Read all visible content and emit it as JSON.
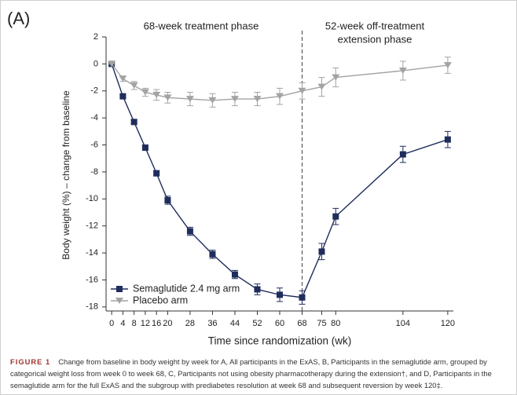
{
  "chart_data": {
    "type": "line",
    "panel_label": "(A)",
    "annotations": [
      "68-week treatment phase",
      "52-week off-treatment",
      "extension phase"
    ],
    "ylabel": "Body weight (%) – change from baseline",
    "xlabel": "Time since randomization (wk)",
    "x": [
      0,
      4,
      8,
      12,
      16,
      20,
      28,
      36,
      44,
      52,
      60,
      68,
      75,
      80,
      104,
      120
    ],
    "series": [
      {
        "name": "Semaglutide 2.4 mg arm",
        "color": "#1f2d5c",
        "marker": "square",
        "values": [
          0,
          -2.4,
          -4.3,
          -6.2,
          -8.1,
          -10.1,
          -12.4,
          -14.1,
          -15.6,
          -16.7,
          -17.1,
          -17.3,
          -13.9,
          -11.3,
          -6.7,
          -5.6
        ],
        "errors": [
          0,
          0.1,
          0.15,
          0.2,
          0.2,
          0.3,
          0.3,
          0.3,
          0.3,
          0.4,
          0.5,
          0.5,
          0.6,
          0.6,
          0.6,
          0.6
        ]
      },
      {
        "name": "Placebo arm",
        "color": "#a3a3a3",
        "marker": "triangle-down",
        "values": [
          0,
          -1.1,
          -1.6,
          -2.1,
          -2.3,
          -2.5,
          -2.6,
          -2.7,
          -2.6,
          -2.6,
          -2.4,
          -2.0,
          -1.7,
          -1.0,
          -0.5,
          -0.1
        ],
        "errors": [
          0,
          0.2,
          0.3,
          0.3,
          0.4,
          0.4,
          0.5,
          0.5,
          0.5,
          0.5,
          0.6,
          0.6,
          0.7,
          0.7,
          0.7,
          0.6
        ]
      }
    ],
    "xlim": [
      -2,
      122
    ],
    "xticks": [
      0,
      4,
      8,
      12,
      16,
      20,
      28,
      36,
      44,
      52,
      60,
      68,
      75,
      80,
      104,
      120
    ],
    "ylim": [
      -18.3,
      2
    ],
    "yticks": [
      2,
      0,
      -2,
      -4,
      -6,
      -8,
      -10,
      -12,
      -14,
      -16,
      -18
    ],
    "vline": 68,
    "legend": "lower left",
    "grid": false
  },
  "caption": {
    "label": "FIGURE 1",
    "text": "Change from baseline in body weight by week for A, All participants in the ExAS, B, Participants in the semaglutide arm, grouped by categorical weight loss from week 0 to week 68, C, Participants not using obesity pharmacotherapy during the extension†, and D, Participants in the semaglutide arm for the full ExAS and the subgroup with prediabetes resolution at week 68 and subsequent reversion by week 120‡."
  }
}
